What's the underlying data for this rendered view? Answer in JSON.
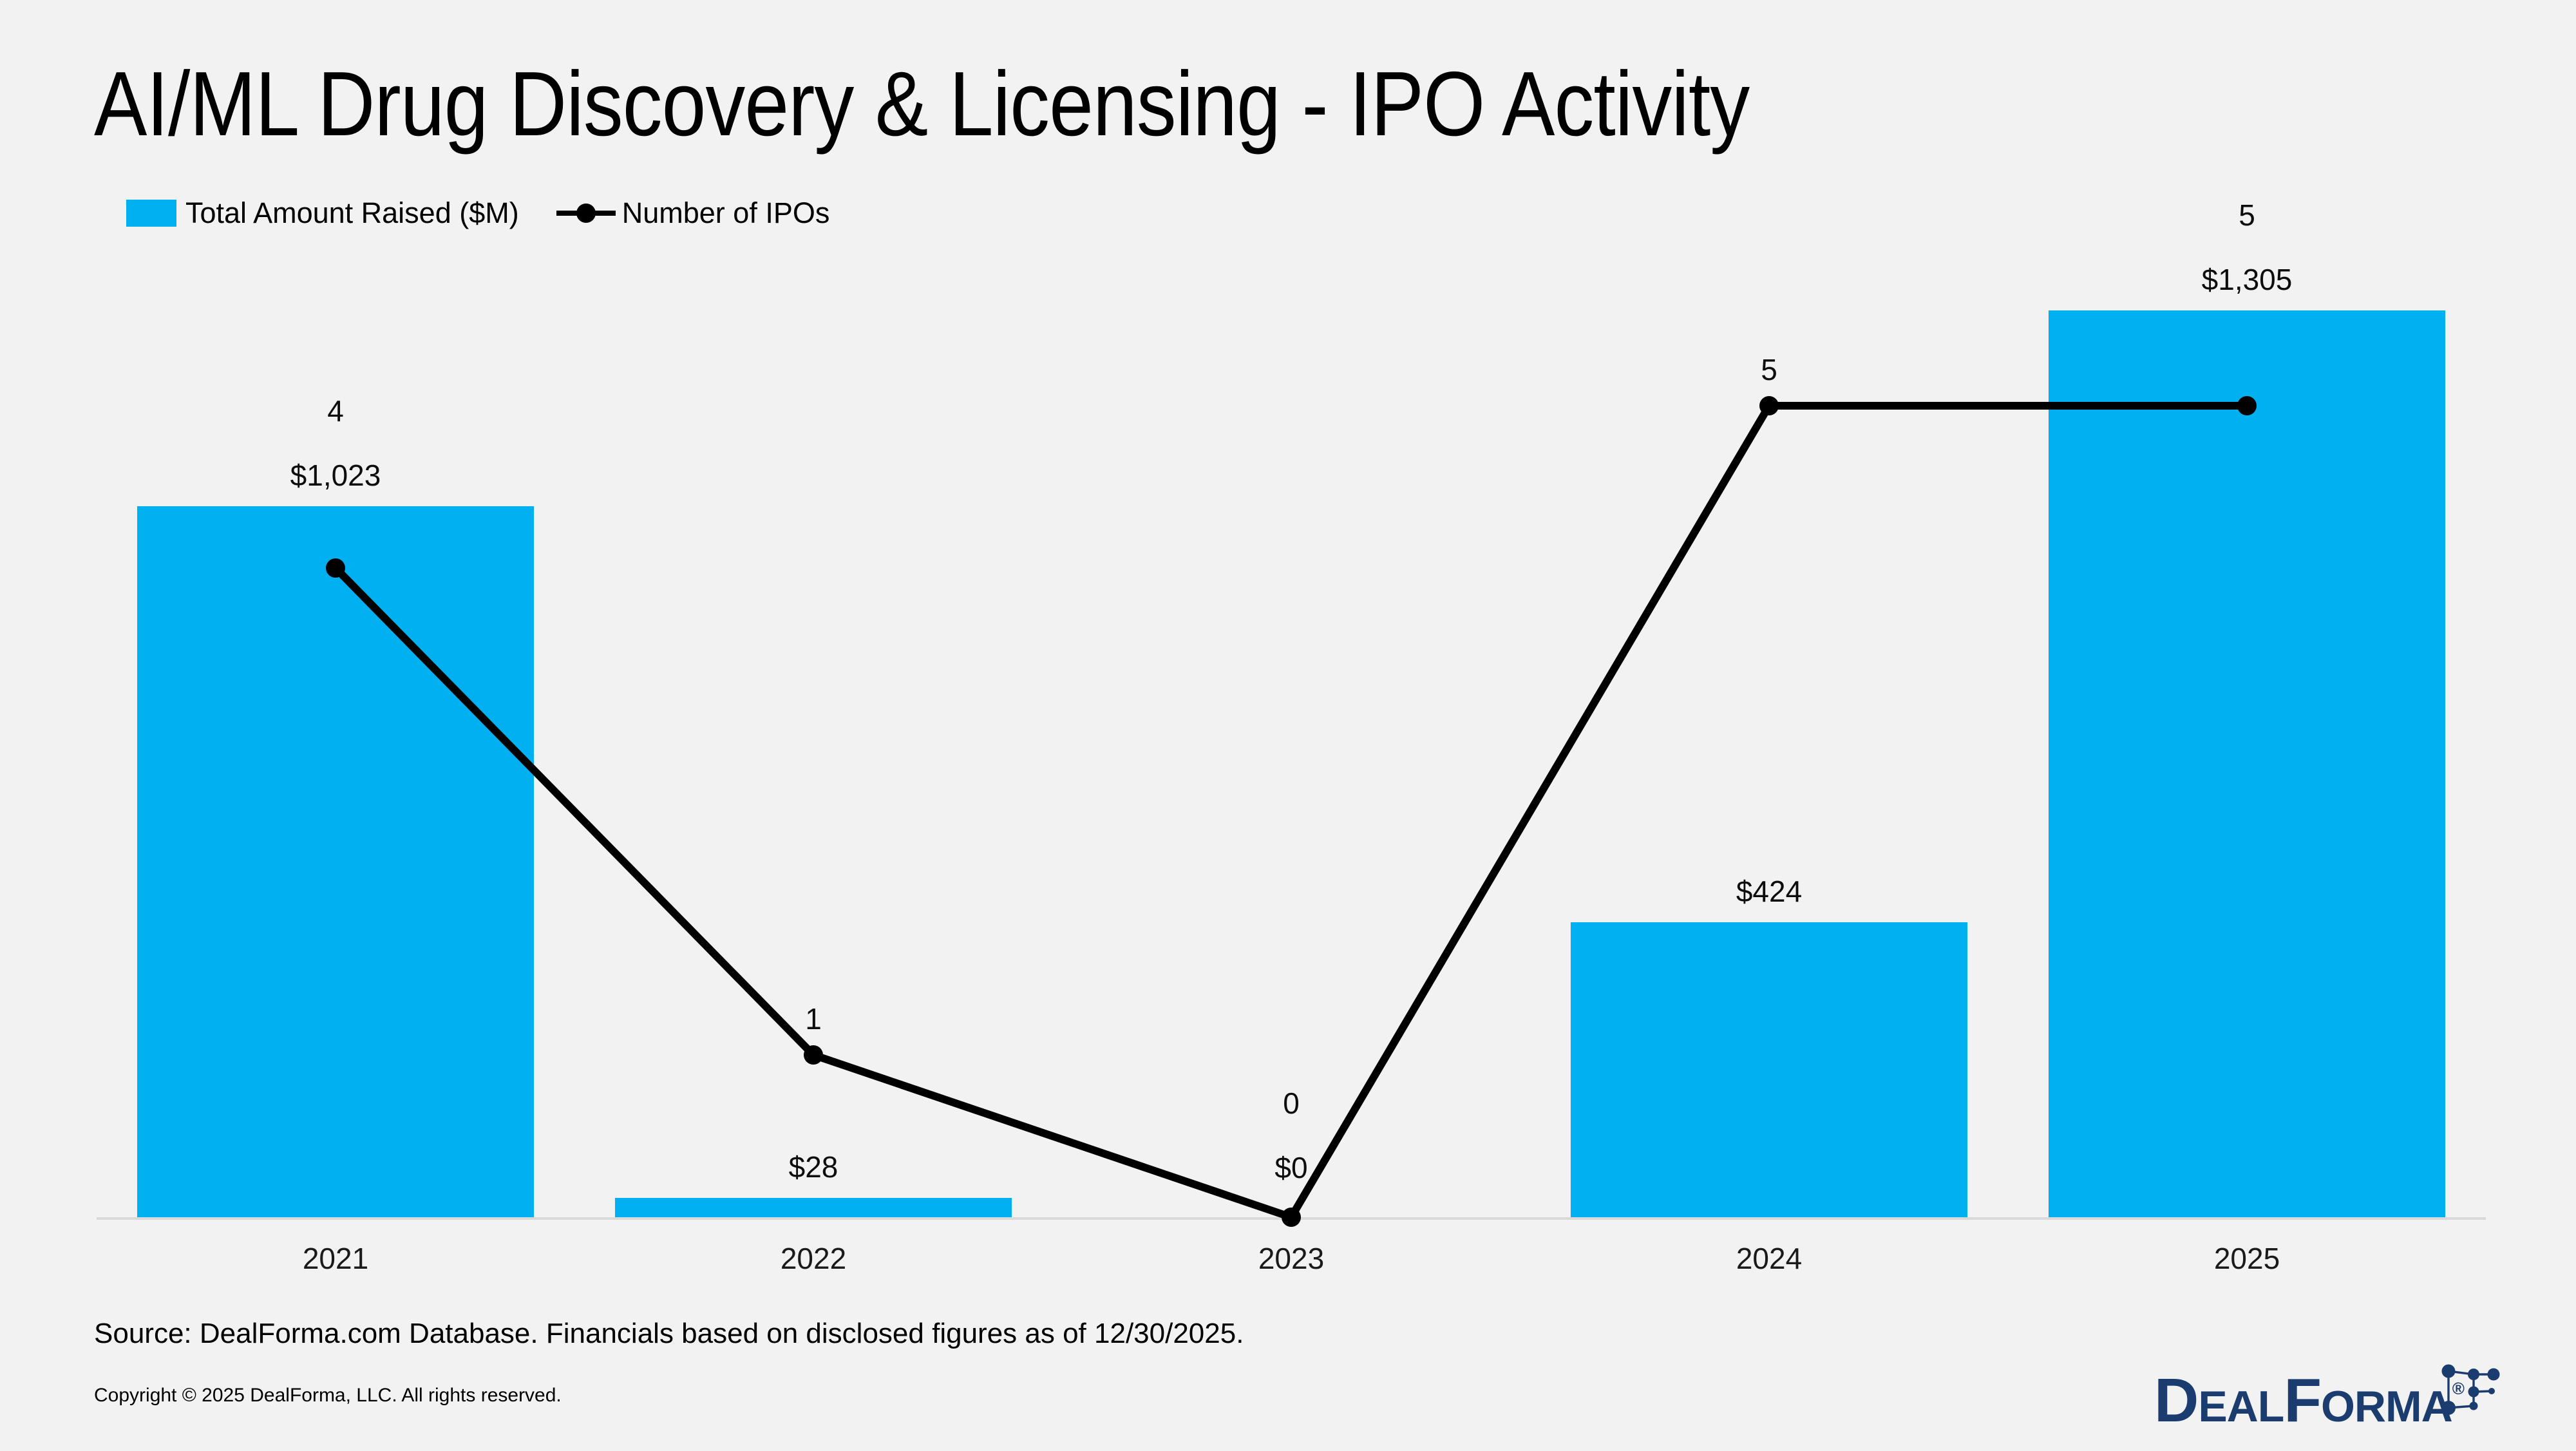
{
  "title": "AI/ML Drug Discovery & Licensing - IPO Activity",
  "legend": {
    "bar_label": "Total Amount Raised ($M)",
    "line_label": "Number of IPOs"
  },
  "colors": {
    "background": "#f2f2f2",
    "bar": "#00b0f0",
    "line": "#000000",
    "axis_line": "#d9d9d9",
    "label_text": "#0d0d0d",
    "logo_navy": "#1b3c6e"
  },
  "chart_data": {
    "type": "bar",
    "subtype": "combo-bar-line",
    "title": "AI/ML Drug Discovery & Licensing - IPO Activity",
    "categories": [
      "2021",
      "2022",
      "2023",
      "2024",
      "2025"
    ],
    "series": [
      {
        "name": "Total Amount Raised ($M)",
        "type": "bar",
        "color": "#00b0f0",
        "values": [
          1023,
          28,
          0,
          424,
          1305
        ],
        "labels": [
          "$1,023",
          "$28",
          "$0",
          "$424",
          "$1,305"
        ]
      },
      {
        "name": "Number of IPOs",
        "type": "line",
        "color": "#000000",
        "values": [
          4,
          1,
          0,
          5,
          5
        ],
        "labels": [
          "4",
          "1",
          "0",
          "5",
          "5"
        ]
      }
    ],
    "xlabel": "",
    "ylabel": "",
    "bar_axis": {
      "min": 0,
      "implied_max": 1400
    },
    "line_axis": {
      "min": 0,
      "implied_max": 5
    },
    "gridlines": false,
    "y_axis_shown": false,
    "legend_position": "top-left"
  },
  "footer": {
    "source": "Source: DealForma.com Database. Financials based on disclosed figures as of 12/30/2025.",
    "copyright": "Copyright © 2025 DealForma, LLC. All rights reserved."
  },
  "logo": {
    "parts": [
      "D",
      "EAL",
      "F",
      "ORMA"
    ],
    "registered": "®"
  }
}
